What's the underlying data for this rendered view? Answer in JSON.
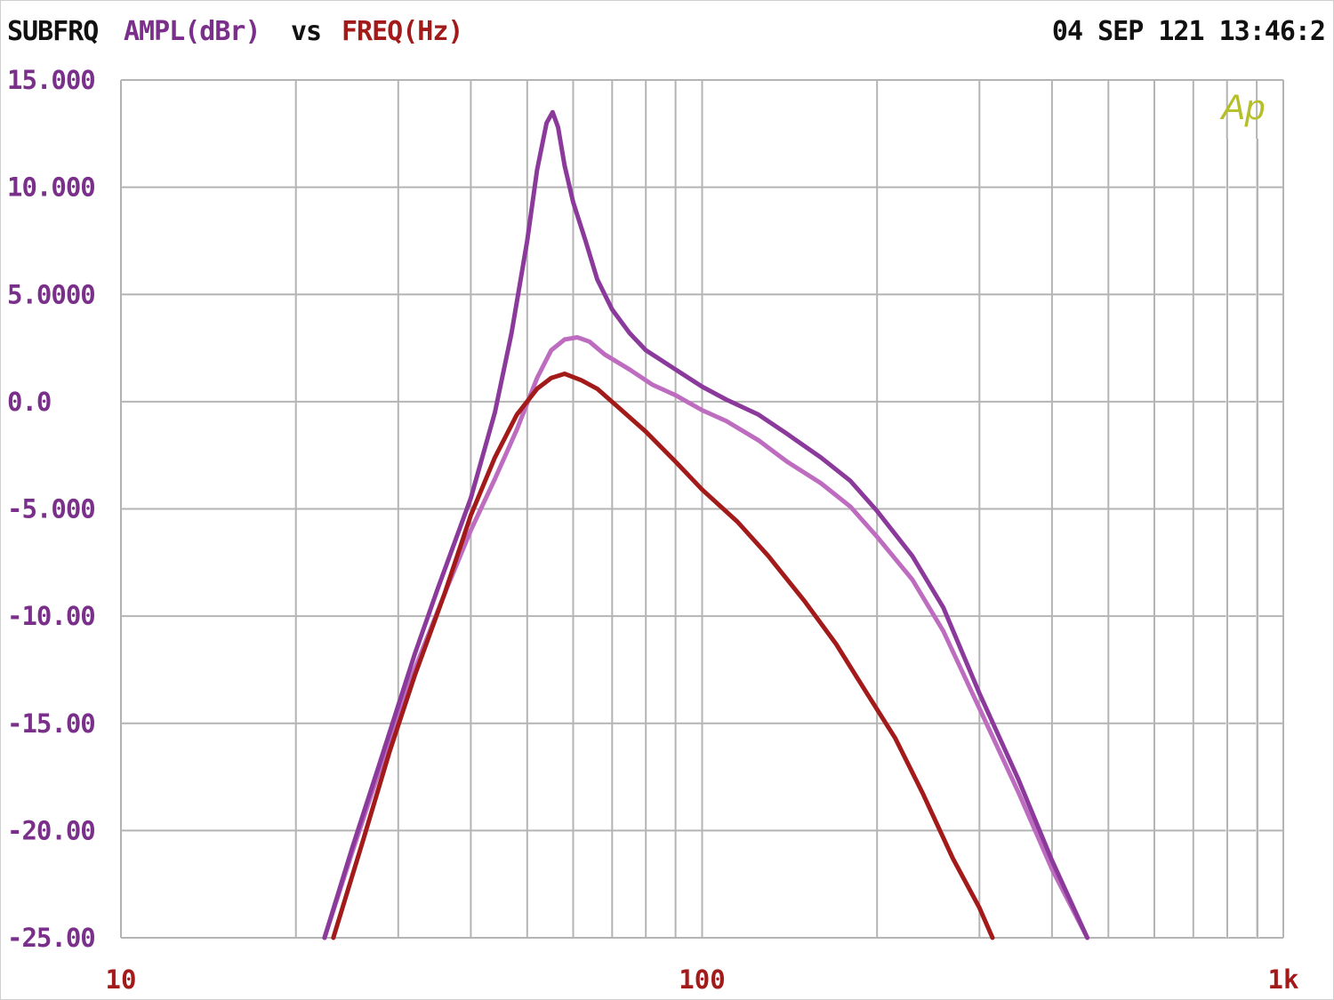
{
  "header": {
    "label": "SUBFRQ",
    "y_quantity": "AMPL(dBr)",
    "versus": "vs",
    "x_quantity": "FREQ(Hz)",
    "timestamp": "04 SEP 121 13:46:2"
  },
  "watermark": "Ap",
  "colors": {
    "background": "#ffffff",
    "grid": "#b4b4b4",
    "y_axis_text": "#7a2f8a",
    "x_axis_text": "#a31a1a",
    "header_text": "#111111",
    "watermark": "#b5bf2a"
  },
  "chart_data": {
    "type": "line",
    "x_scale": "log",
    "xlim": [
      10,
      1000
    ],
    "ylim": [
      -25,
      15
    ],
    "grid": true,
    "x_ticks": [
      {
        "value": 10,
        "label": "10"
      },
      {
        "value": 100,
        "label": "100"
      },
      {
        "value": 1000,
        "label": "1k"
      }
    ],
    "y_ticks": [
      {
        "value": 15,
        "label": "15.000"
      },
      {
        "value": 10,
        "label": "10.000"
      },
      {
        "value": 5,
        "label": "5.0000"
      },
      {
        "value": 0,
        "label": "0.0"
      },
      {
        "value": -5,
        "label": "-5.000"
      },
      {
        "value": -10,
        "label": "-10.00"
      },
      {
        "value": -15,
        "label": "-15.00"
      },
      {
        "value": -20,
        "label": "-20.00"
      },
      {
        "value": -25,
        "label": "-25.00"
      }
    ],
    "series": [
      {
        "color": "#8b3a9c",
        "points": [
          [
            22.4,
            -25
          ],
          [
            25,
            -20.8
          ],
          [
            28,
            -16.7
          ],
          [
            32,
            -11.8
          ],
          [
            35,
            -8.8
          ],
          [
            40,
            -4.5
          ],
          [
            44,
            -0.5
          ],
          [
            47,
            3.2
          ],
          [
            50,
            7.5
          ],
          [
            52,
            10.8
          ],
          [
            54,
            13
          ],
          [
            55.3,
            13.5
          ],
          [
            56.5,
            12.8
          ],
          [
            58,
            11
          ],
          [
            60,
            9.3
          ],
          [
            63,
            7.5
          ],
          [
            66,
            5.7
          ],
          [
            70,
            4.3
          ],
          [
            75,
            3.2
          ],
          [
            80,
            2.4
          ],
          [
            90,
            1.5
          ],
          [
            100,
            0.7
          ],
          [
            110,
            0.1
          ],
          [
            125,
            -0.6
          ],
          [
            140,
            -1.5
          ],
          [
            160,
            -2.6
          ],
          [
            180,
            -3.7
          ],
          [
            200,
            -5.1
          ],
          [
            230,
            -7.2
          ],
          [
            260,
            -9.6
          ],
          [
            300,
            -13.6
          ],
          [
            350,
            -17.6
          ],
          [
            400,
            -21.4
          ],
          [
            460,
            -25
          ]
        ]
      },
      {
        "color": "#bd6cc0",
        "points": [
          [
            22.4,
            -25
          ],
          [
            25,
            -21
          ],
          [
            28,
            -17
          ],
          [
            32,
            -12.5
          ],
          [
            36,
            -9
          ],
          [
            40,
            -6
          ],
          [
            44,
            -3.6
          ],
          [
            48,
            -1.3
          ],
          [
            52,
            1.1
          ],
          [
            55,
            2.4
          ],
          [
            58,
            2.9
          ],
          [
            61,
            3
          ],
          [
            64,
            2.8
          ],
          [
            68,
            2.2
          ],
          [
            75,
            1.5
          ],
          [
            82,
            0.8
          ],
          [
            90,
            0.3
          ],
          [
            100,
            -0.4
          ],
          [
            110,
            -0.9
          ],
          [
            125,
            -1.8
          ],
          [
            140,
            -2.8
          ],
          [
            160,
            -3.8
          ],
          [
            180,
            -4.9
          ],
          [
            200,
            -6.3
          ],
          [
            230,
            -8.3
          ],
          [
            260,
            -10.7
          ],
          [
            300,
            -14.3
          ],
          [
            350,
            -18.2
          ],
          [
            400,
            -21.8
          ],
          [
            460,
            -25
          ]
        ]
      },
      {
        "color": "#a31a1a",
        "points": [
          [
            23.2,
            -25
          ],
          [
            26,
            -20.6
          ],
          [
            29,
            -16.3
          ],
          [
            32,
            -12.8
          ],
          [
            36,
            -9
          ],
          [
            40,
            -5.3
          ],
          [
            44,
            -2.6
          ],
          [
            48,
            -0.6
          ],
          [
            52,
            0.6
          ],
          [
            55,
            1.1
          ],
          [
            58,
            1.3
          ],
          [
            62,
            1
          ],
          [
            66,
            0.6
          ],
          [
            72,
            -0.3
          ],
          [
            80,
            -1.4
          ],
          [
            90,
            -2.8
          ],
          [
            100,
            -4.1
          ],
          [
            115,
            -5.6
          ],
          [
            130,
            -7.2
          ],
          [
            150,
            -9.3
          ],
          [
            170,
            -11.3
          ],
          [
            190,
            -13.4
          ],
          [
            215,
            -15.7
          ],
          [
            240,
            -18.3
          ],
          [
            270,
            -21.3
          ],
          [
            300,
            -23.6
          ],
          [
            316,
            -25
          ]
        ]
      }
    ]
  }
}
